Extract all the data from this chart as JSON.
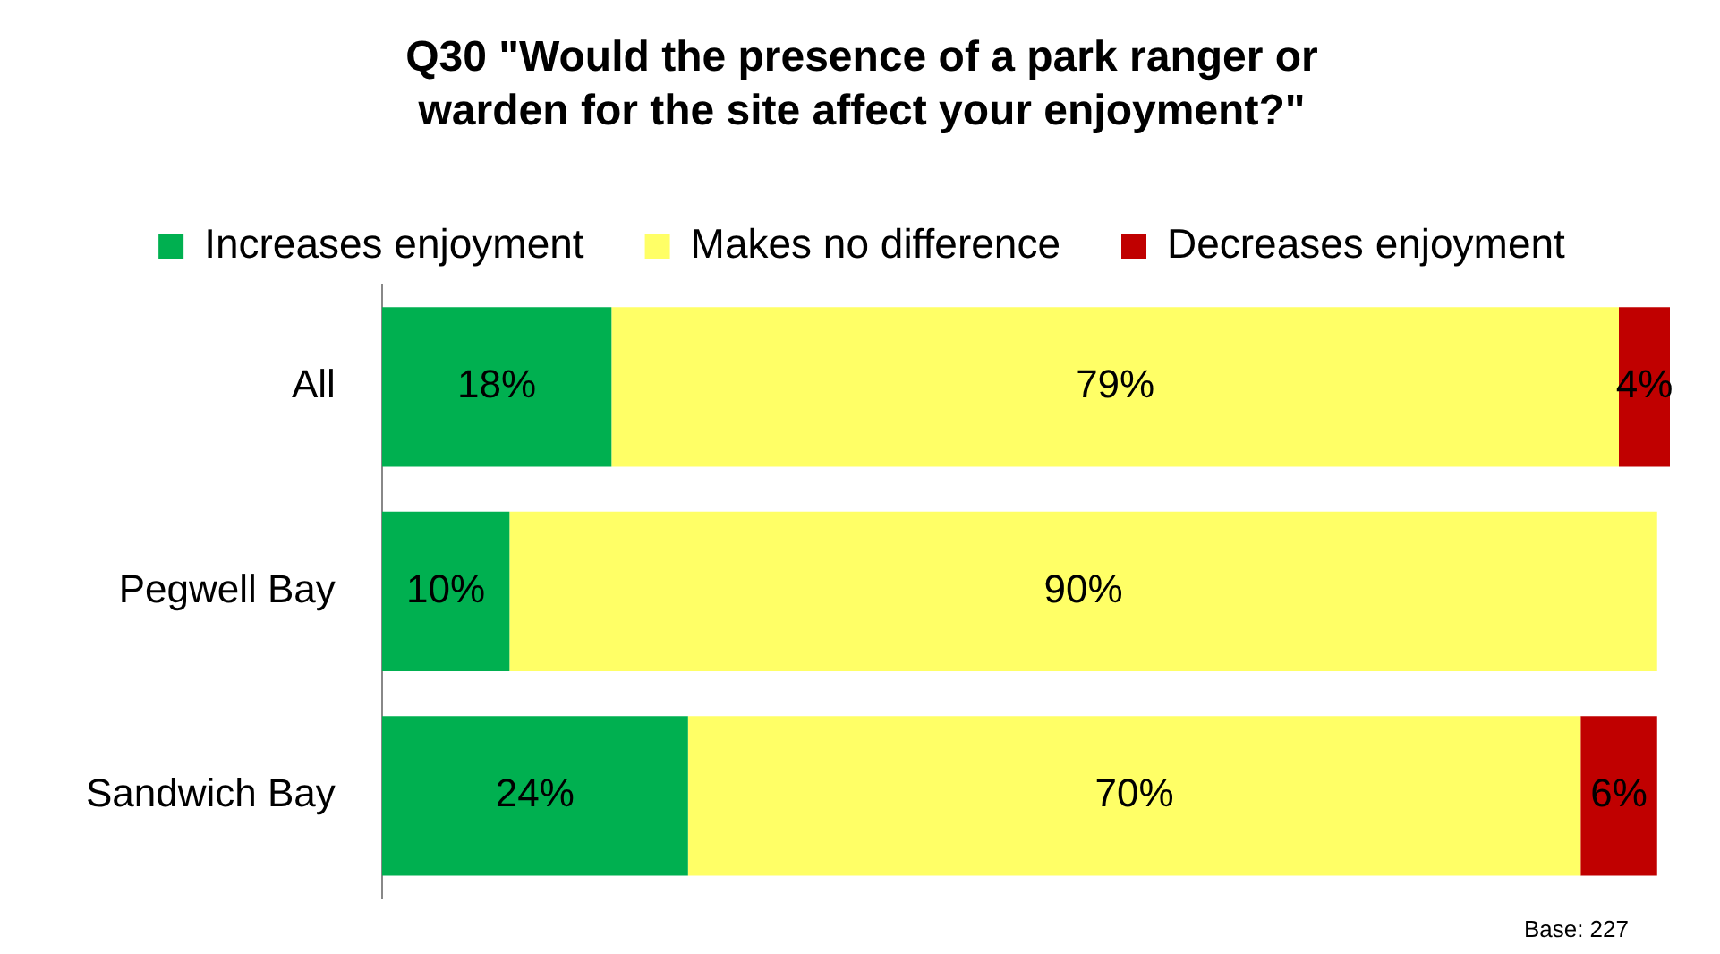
{
  "chart_data": {
    "type": "bar",
    "orientation": "horizontal",
    "stacked": true,
    "title": "Q30 \"Would the presence of a park ranger or warden for the site affect your enjoyment?\"",
    "categories": [
      "All",
      "Pegwell Bay",
      "Sandwich Bay"
    ],
    "series": [
      {
        "name": "Increases enjoyment",
        "color": "#00b050",
        "values": [
          18,
          10,
          24
        ],
        "value_labels": [
          "18%",
          "10%",
          "24%"
        ]
      },
      {
        "name": "Makes no difference",
        "color": "#ffff66",
        "values": [
          79,
          90,
          70
        ],
        "value_labels": [
          "79%",
          "90%",
          "70%"
        ]
      },
      {
        "name": "Decreases enjoyment",
        "color": "#c00000",
        "values": [
          4,
          null,
          6
        ],
        "value_labels": [
          "4%",
          null,
          "6%"
        ]
      }
    ],
    "legend": "top",
    "annotations": [
      "Base: 227"
    ]
  }
}
